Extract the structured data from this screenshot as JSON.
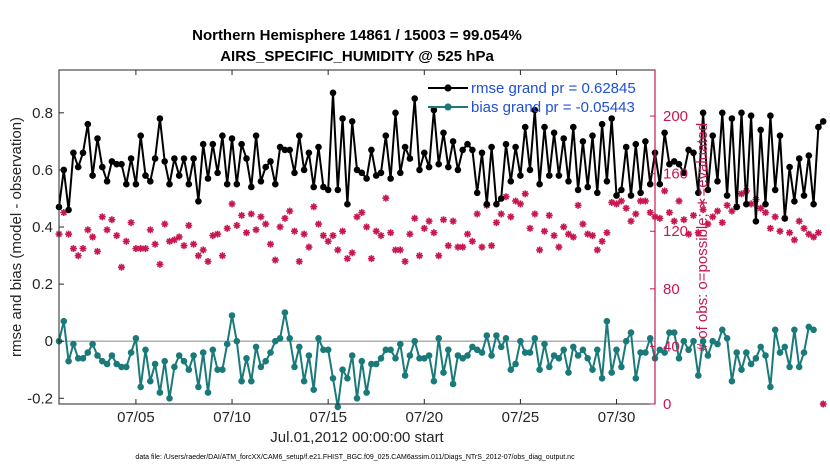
{
  "chart_data": {
    "type": "line",
    "title": "Northern Hemisphere 14861 / 15003 = 99.054%",
    "subtitle": "AIRS_SPECIFIC_HUMIDITY @ 525 hPa",
    "xlabel": "Jul.01,2012 00:00:00 start",
    "ylabel": "rmse and bias (model - observation)",
    "ylabel_right": "# of obs: o=possible; ∗=evaluated",
    "x_ticks": [
      "07/05",
      "07/10",
      "07/15",
      "07/20",
      "07/25",
      "07/30"
    ],
    "y_ticks": [
      "-0.2",
      "0",
      "0.2",
      "0.4",
      "0.6",
      "0.8"
    ],
    "y_right_ticks": [
      "0",
      "40",
      "80",
      "120",
      "160",
      "200"
    ],
    "xlim": [
      1,
      32
    ],
    "ylim": [
      -0.22,
      0.95
    ],
    "ylim_right": [
      0,
      232
    ],
    "legend_position": "top-right",
    "footnote": "data file: /Users/raeder/DAI/ATM_forcXX/CAM6_setup/f.e21.FHIST_BGC.f09_025.CAM6assim.011/Diags_NTrS_2012-07/obs_diag_output.nc",
    "colors": {
      "rmse": "#000000",
      "bias": "#1a7a7a",
      "obs": "#c8174f",
      "zero_line": "#b0b0b0",
      "legend_text": "#1f4fd6"
    },
    "series": [
      {
        "name": "rmse grand pr = 0.62845",
        "start": 1.0,
        "step": 0.25,
        "values": [
          0.47,
          0.6,
          0.46,
          0.66,
          0.61,
          0.66,
          0.76,
          0.58,
          0.71,
          0.61,
          0.56,
          0.63,
          0.62,
          0.62,
          0.55,
          0.64,
          0.55,
          0.72,
          0.58,
          0.56,
          0.64,
          0.78,
          0.63,
          0.55,
          0.64,
          0.58,
          0.64,
          0.55,
          0.64,
          0.49,
          0.69,
          0.57,
          0.69,
          0.59,
          0.72,
          0.55,
          0.71,
          0.55,
          0.69,
          0.64,
          0.54,
          0.72,
          0.56,
          0.61,
          0.63,
          0.55,
          0.68,
          0.67,
          0.67,
          0.59,
          0.72,
          0.6,
          0.66,
          0.54,
          0.68,
          0.54,
          0.53,
          0.87,
          0.53,
          0.78,
          0.48,
          0.77,
          0.6,
          0.59,
          0.57,
          0.67,
          0.58,
          0.59,
          0.72,
          0.57,
          0.8,
          0.59,
          0.68,
          0.64,
          0.85,
          0.6,
          0.66,
          0.61,
          0.81,
          0.62,
          0.73,
          0.61,
          0.7,
          0.6,
          0.67,
          0.69,
          0.67,
          0.52,
          0.66,
          0.48,
          0.68,
          0.48,
          0.5,
          0.69,
          0.56,
          0.68,
          0.58,
          0.75,
          0.6,
          0.81,
          0.55,
          0.75,
          0.58,
          0.73,
          0.58,
          0.71,
          0.56,
          0.75,
          0.53,
          0.7,
          0.54,
          0.72,
          0.52,
          0.76,
          0.56,
          0.78,
          0.51,
          0.53,
          0.68,
          0.51,
          0.69,
          0.52,
          0.7,
          0.55,
          0.66,
          0.55,
          0.73,
          0.62,
          0.63,
          0.62,
          0.59,
          0.67,
          0.66,
          0.52,
          0.8,
          0.53,
          0.72,
          0.56,
          0.8,
          0.51,
          0.78,
          0.47,
          0.8,
          0.48,
          0.79,
          0.42,
          0.74,
          0.48,
          0.79,
          0.53,
          0.72,
          0.43,
          0.61,
          0.49,
          0.64,
          0.51,
          0.65,
          0.48,
          0.75,
          0.77
        ]
      },
      {
        "name": "bias grand pr = -0.05443",
        "start": 1.0,
        "step": 0.25,
        "values": [
          0.0,
          0.07,
          -0.07,
          -0.01,
          -0.06,
          -0.06,
          -0.04,
          -0.01,
          -0.05,
          -0.07,
          -0.08,
          -0.05,
          -0.08,
          -0.09,
          -0.09,
          -0.04,
          0.01,
          -0.16,
          -0.03,
          -0.14,
          -0.08,
          -0.18,
          -0.07,
          -0.2,
          -0.09,
          -0.05,
          -0.07,
          -0.1,
          -0.05,
          -0.16,
          -0.04,
          -0.18,
          -0.03,
          -0.1,
          -0.1,
          -0.01,
          0.09,
          0.0,
          -0.14,
          -0.06,
          -0.14,
          -0.02,
          -0.09,
          -0.07,
          -0.04,
          0.0,
          0.01,
          0.1,
          0.01,
          -0.09,
          -0.02,
          -0.14,
          -0.05,
          -0.17,
          0.01,
          -0.03,
          -0.03,
          -0.13,
          -0.23,
          -0.1,
          -0.13,
          -0.05,
          -0.2,
          -0.07,
          -0.18,
          -0.08,
          -0.08,
          -0.06,
          -0.03,
          -0.03,
          -0.06,
          -0.01,
          -0.12,
          -0.05,
          0.0,
          -0.06,
          -0.06,
          -0.05,
          -0.14,
          0.01,
          -0.11,
          -0.03,
          -0.15,
          -0.05,
          -0.06,
          -0.05,
          -0.02,
          -0.03,
          -0.04,
          0.02,
          -0.05,
          0.02,
          -0.02,
          0.01,
          -0.1,
          -0.08,
          0.0,
          -0.04,
          -0.04,
          0.01,
          -0.1,
          -0.01,
          -0.09,
          -0.05,
          -0.06,
          -0.03,
          -0.11,
          -0.02,
          -0.05,
          -0.03,
          -0.06,
          -0.1,
          -0.03,
          -0.13,
          0.07,
          -0.11,
          -0.03,
          -0.09,
          0.0,
          0.03,
          -0.13,
          -0.04,
          -0.04,
          0.01,
          -0.06,
          -0.03,
          -0.04,
          0.03,
          0.03,
          -0.06,
          0.0,
          -0.03,
          0.0,
          -0.12,
          0.0,
          -0.05,
          0.0,
          -0.01,
          0.04,
          0.01,
          -0.14,
          -0.04,
          -0.1,
          -0.04,
          -0.08,
          -0.06,
          -0.02,
          -0.05,
          -0.16,
          0.04,
          -0.04,
          -0.02,
          -0.09,
          0.04,
          -0.09,
          -0.04,
          0.05,
          0.04
        ]
      },
      {
        "name": "obs count (evaluated)",
        "axis": "right",
        "start": 1.0,
        "step": 0.25,
        "values": [
          118,
          133,
          118,
          108,
          103,
          108,
          121,
          116,
          106,
          130,
          121,
          128,
          117,
          95,
          113,
          126,
          108,
          108,
          108,
          121,
          111,
          97,
          125,
          113,
          114,
          116,
          110,
          124,
          111,
          103,
          107,
          99,
          117,
          118,
          103,
          122,
          139,
          124,
          131,
          119,
          132,
          121,
          130,
          125,
          111,
          100,
          123,
          129,
          134,
          120,
          99,
          118,
          109,
          137,
          125,
          117,
          113,
          117,
          107,
          120,
          101,
          105,
          130,
          133,
          123,
          101,
          120,
          117,
          143,
          119,
          107,
          107,
          99,
          118,
          129,
          103,
          122,
          127,
          119,
          103,
          128,
          110,
          127,
          109,
          109,
          118,
          113,
          132,
          109,
          138,
          110,
          126,
          132,
          144,
          130,
          141,
          139,
          146,
          122,
          132,
          107,
          120,
          131,
          117,
          109,
          123,
          118,
          116,
          138,
          125,
          118,
          117,
          107,
          113,
          119,
          140,
          139,
          141,
          136,
          127,
          132,
          141,
          141,
          133,
          130,
          129,
          148,
          133,
          127,
          141,
          128,
          118,
          131,
          119,
          135,
          125,
          130,
          134,
          126,
          138,
          134,
          137,
          146,
          148,
          139,
          142,
          136,
          133,
          122,
          130,
          120,
          129,
          119,
          114,
          127,
          122,
          118,
          116,
          119,
          0
        ]
      }
    ]
  }
}
